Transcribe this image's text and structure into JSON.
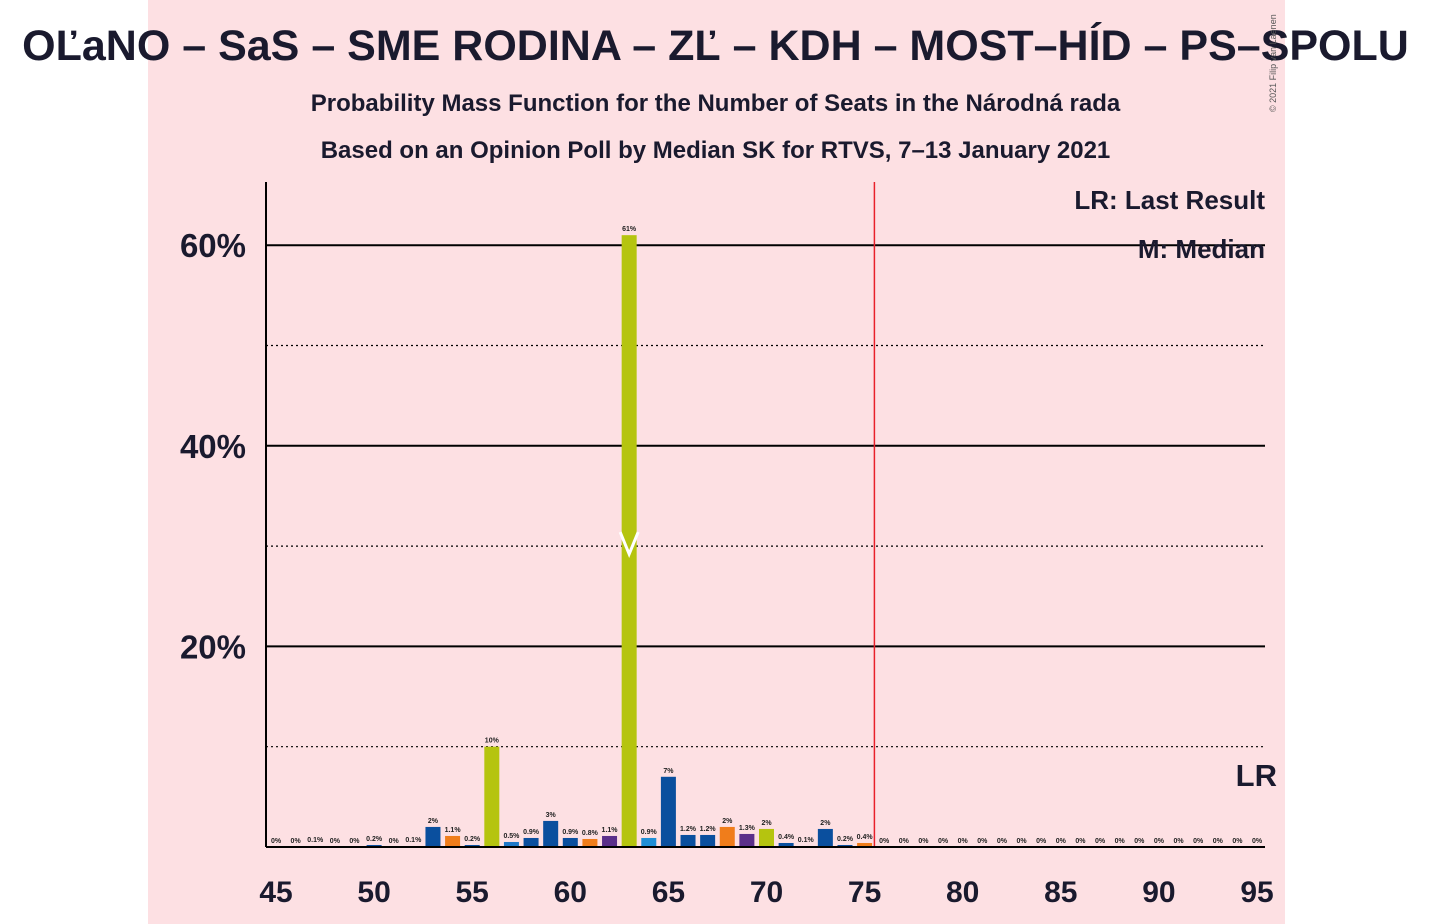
{
  "header": {
    "title": "OĽaNO – SaS – SME RODINA – ZĽ – KDH – MOST–HÍD – PS–SPOLU",
    "subtitle_1": "Probability Mass Function for the Number of Seats in the Národná rada",
    "subtitle_2": "Based on an Opinion Poll by Median SK for RTVS, 7–13 January 2021",
    "copyright": "© 2021 Filip van Laenen"
  },
  "legend": {
    "last_result": "LR: Last Result",
    "median": "M: Median",
    "lr_marker": "LR"
  },
  "colors": {
    "background_band": "#fde0e3",
    "lr_line": "#e8202a",
    "grid": "#000000",
    "median_marker": "#ffffff"
  },
  "chart_data": {
    "type": "bar",
    "title": "OĽaNO – SaS – SME RODINA – ZĽ – KDH – MOST–HÍD – PS–SPOLU",
    "xlabel": "",
    "ylabel": "",
    "xlim": [
      45,
      95
    ],
    "ylim": [
      0,
      66
    ],
    "y_ticks": [
      {
        "value": 20,
        "label": "20%"
      },
      {
        "value": 40,
        "label": "40%"
      },
      {
        "value": 60,
        "label": "60%"
      }
    ],
    "y_dotted": [
      10,
      30,
      50
    ],
    "x_ticks": [
      45,
      50,
      55,
      60,
      65,
      70,
      75,
      80,
      85,
      90,
      95
    ],
    "last_result": 75.5,
    "median": 63,
    "bars": [
      {
        "x": 45,
        "value": 0,
        "label": "0%",
        "color": "#cccccc"
      },
      {
        "x": 46,
        "value": 0,
        "label": "0%",
        "color": "#cccccc"
      },
      {
        "x": 47,
        "value": 0.1,
        "label": "0.1%",
        "color": "#0a4f9e"
      },
      {
        "x": 48,
        "value": 0,
        "label": "0%",
        "color": "#cccccc"
      },
      {
        "x": 49,
        "value": 0,
        "label": "0%",
        "color": "#cccccc"
      },
      {
        "x": 50,
        "value": 0.2,
        "label": "0.2%",
        "color": "#0a4f9e"
      },
      {
        "x": 51,
        "value": 0,
        "label": "0%",
        "color": "#cccccc"
      },
      {
        "x": 52,
        "value": 0.1,
        "label": "0.1%",
        "color": "#0a4f9e"
      },
      {
        "x": 53,
        "value": 2.0,
        "label": "2%",
        "color": "#0a4f9e"
      },
      {
        "x": 54,
        "value": 1.1,
        "label": "1.1%",
        "color": "#f07d1b"
      },
      {
        "x": 55,
        "value": 0.2,
        "label": "0.2%",
        "color": "#0a4f9e"
      },
      {
        "x": 56,
        "value": 10,
        "label": "10%",
        "color": "#b5c40f"
      },
      {
        "x": 57,
        "value": 0.5,
        "label": "0.5%",
        "color": "#1f78c8"
      },
      {
        "x": 58,
        "value": 0.9,
        "label": "0.9%",
        "color": "#0a4f9e"
      },
      {
        "x": 59,
        "value": 2.6,
        "label": "3%",
        "color": "#0a4f9e"
      },
      {
        "x": 60,
        "value": 0.9,
        "label": "0.9%",
        "color": "#0a4f9e"
      },
      {
        "x": 61,
        "value": 0.8,
        "label": "0.8%",
        "color": "#f07d1b"
      },
      {
        "x": 62,
        "value": 1.1,
        "label": "1.1%",
        "color": "#5b2f8a"
      },
      {
        "x": 63,
        "value": 61,
        "label": "61%",
        "color": "#b5c40f"
      },
      {
        "x": 64,
        "value": 0.9,
        "label": "0.9%",
        "color": "#1f8fd6"
      },
      {
        "x": 65,
        "value": 7,
        "label": "7%",
        "color": "#0a4f9e"
      },
      {
        "x": 66,
        "value": 1.2,
        "label": "1.2%",
        "color": "#0a4f9e"
      },
      {
        "x": 67,
        "value": 1.2,
        "label": "1.2%",
        "color": "#0a4f9e"
      },
      {
        "x": 68,
        "value": 2.0,
        "label": "2%",
        "color": "#f07d1b"
      },
      {
        "x": 69,
        "value": 1.3,
        "label": "1.3%",
        "color": "#5b2f8a"
      },
      {
        "x": 70,
        "value": 1.8,
        "label": "2%",
        "color": "#b5c40f"
      },
      {
        "x": 71,
        "value": 0.4,
        "label": "0.4%",
        "color": "#0a4f9e"
      },
      {
        "x": 72,
        "value": 0.1,
        "label": "0.1%",
        "color": "#0a4f9e"
      },
      {
        "x": 73,
        "value": 1.8,
        "label": "2%",
        "color": "#0a4f9e"
      },
      {
        "x": 74,
        "value": 0.2,
        "label": "0.2%",
        "color": "#0a4f9e"
      },
      {
        "x": 75,
        "value": 0.4,
        "label": "0.4%",
        "color": "#f07d1b"
      },
      {
        "x": 76,
        "value": 0,
        "label": "0%",
        "color": "#cccccc"
      },
      {
        "x": 77,
        "value": 0,
        "label": "0%",
        "color": "#cccccc"
      },
      {
        "x": 78,
        "value": 0,
        "label": "0%",
        "color": "#cccccc"
      },
      {
        "x": 79,
        "value": 0,
        "label": "0%",
        "color": "#cccccc"
      },
      {
        "x": 80,
        "value": 0,
        "label": "0%",
        "color": "#cccccc"
      },
      {
        "x": 81,
        "value": 0,
        "label": "0%",
        "color": "#cccccc"
      },
      {
        "x": 82,
        "value": 0,
        "label": "0%",
        "color": "#cccccc"
      },
      {
        "x": 83,
        "value": 0,
        "label": "0%",
        "color": "#cccccc"
      },
      {
        "x": 84,
        "value": 0,
        "label": "0%",
        "color": "#cccccc"
      },
      {
        "x": 85,
        "value": 0,
        "label": "0%",
        "color": "#cccccc"
      },
      {
        "x": 86,
        "value": 0,
        "label": "0%",
        "color": "#cccccc"
      },
      {
        "x": 87,
        "value": 0,
        "label": "0%",
        "color": "#cccccc"
      },
      {
        "x": 88,
        "value": 0,
        "label": "0%",
        "color": "#cccccc"
      },
      {
        "x": 89,
        "value": 0,
        "label": "0%",
        "color": "#cccccc"
      },
      {
        "x": 90,
        "value": 0,
        "label": "0%",
        "color": "#cccccc"
      },
      {
        "x": 91,
        "value": 0,
        "label": "0%",
        "color": "#cccccc"
      },
      {
        "x": 92,
        "value": 0,
        "label": "0%",
        "color": "#cccccc"
      },
      {
        "x": 93,
        "value": 0,
        "label": "0%",
        "color": "#cccccc"
      },
      {
        "x": 94,
        "value": 0,
        "label": "0%",
        "color": "#cccccc"
      },
      {
        "x": 95,
        "value": 0,
        "label": "0%",
        "color": "#cccccc"
      }
    ]
  }
}
